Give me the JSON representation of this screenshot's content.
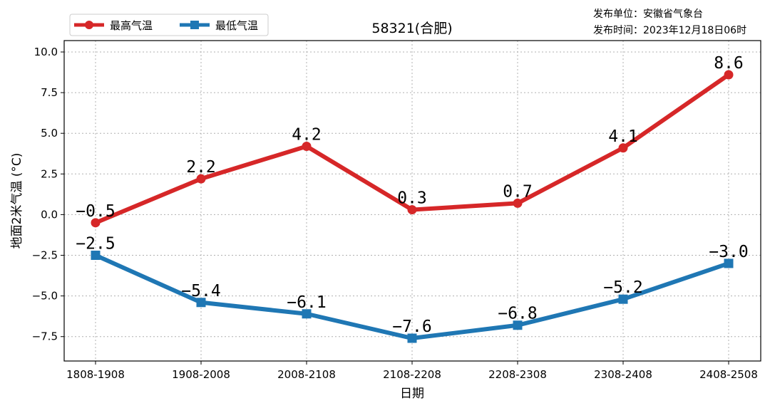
{
  "header": {
    "title": "58321(合肥)",
    "publisher": "发布单位：安徽省气象台",
    "publish_time": "发布时间：2023年12月18日06时"
  },
  "colors": {
    "max": "#d62728",
    "min": "#1f77b4",
    "grid": "#b0b0b0"
  },
  "chart_data": {
    "type": "line",
    "title": "58321(合肥)",
    "xlabel": "日期",
    "ylabel": "地面2米气温 (°C)",
    "categories": [
      "1808-1908",
      "1908-2008",
      "2008-2108",
      "2108-2208",
      "2208-2308",
      "2308-2408",
      "2408-2508"
    ],
    "ylim": [
      -9.0,
      10.7
    ],
    "yticks": [
      -7.5,
      -5.0,
      -2.5,
      0.0,
      2.5,
      5.0,
      7.5,
      10.0
    ],
    "ytick_labels": [
      "−7.5",
      "−5.0",
      "−2.5",
      "0.0",
      "2.5",
      "5.0",
      "7.5",
      "10.0"
    ],
    "grid": true,
    "legend_position": "top-left",
    "series": [
      {
        "name": "最高气温",
        "marker": "circle",
        "values": [
          -0.5,
          2.2,
          4.2,
          0.3,
          0.7,
          4.1,
          8.6
        ],
        "labels": [
          "−0.5",
          "2.2",
          "4.2",
          "0.3",
          "0.7",
          "4.1",
          "8.6"
        ]
      },
      {
        "name": "最低气温",
        "marker": "square",
        "values": [
          -2.5,
          -5.4,
          -6.1,
          -7.6,
          -6.8,
          -5.2,
          -3.0
        ],
        "labels": [
          "−2.5",
          "−5.4",
          "−6.1",
          "−7.6",
          "−6.8",
          "−5.2",
          "−3.0"
        ]
      }
    ]
  }
}
